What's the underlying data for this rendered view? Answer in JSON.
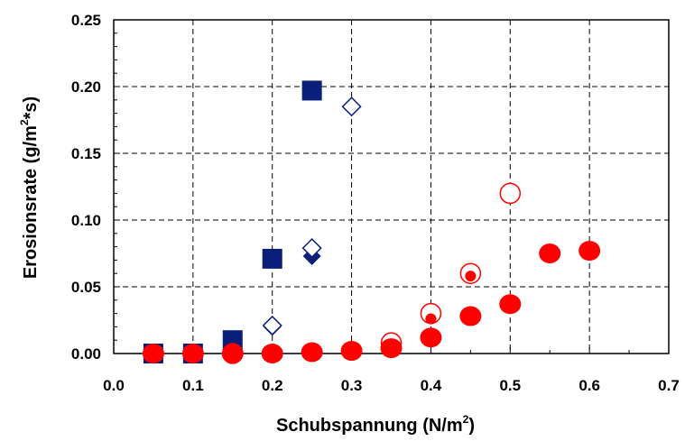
{
  "chart_data": {
    "type": "scatter",
    "title": "",
    "xlabel": {
      "base": "Schubspannung (N/m",
      "sup": "2",
      "tail": ")"
    },
    "ylabel": {
      "base": "Erosionsrate (g/m",
      "sup": "2",
      "tail": "*s)"
    },
    "xlim": [
      0.0,
      0.7
    ],
    "ylim": [
      0.0,
      0.25
    ],
    "x_ticks": [
      "0.0",
      "0.1",
      "0.2",
      "0.3",
      "0.4",
      "0.5",
      "0.6",
      "0.7"
    ],
    "y_ticks": [
      "0.00",
      "0.05",
      "0.10",
      "0.15",
      "0.20",
      "0.25"
    ],
    "grid": true,
    "legend": "none",
    "series": [
      {
        "marker": "filled-square",
        "color": "#0a1f7a",
        "points": [
          [
            0.05,
            0.0
          ],
          [
            0.1,
            0.0
          ],
          [
            0.15,
            0.01
          ],
          [
            0.2,
            0.071
          ],
          [
            0.25,
            0.197
          ]
        ]
      },
      {
        "marker": "filled-diamond",
        "color": "#0a1f7a",
        "points": [
          [
            0.05,
            0.0
          ],
          [
            0.1,
            0.0
          ],
          [
            0.15,
            0.0
          ],
          [
            0.2,
            0.02
          ],
          [
            0.25,
            0.073
          ]
        ]
      },
      {
        "marker": "open-diamond",
        "color": "#0a1f7a",
        "points": [
          [
            0.2,
            0.021
          ],
          [
            0.25,
            0.079
          ],
          [
            0.3,
            0.185
          ]
        ]
      },
      {
        "marker": "open-circle",
        "color": "#ff0000",
        "points": [
          [
            0.15,
            0.0
          ],
          [
            0.35,
            0.008
          ],
          [
            0.4,
            0.03
          ],
          [
            0.45,
            0.06
          ],
          [
            0.5,
            0.12
          ]
        ]
      },
      {
        "marker": "filled-circle",
        "color": "#ff0000",
        "points": [
          [
            0.05,
            0.0
          ],
          [
            0.1,
            0.0
          ],
          [
            0.15,
            0.0
          ],
          [
            0.2,
            0.0
          ],
          [
            0.25,
            0.001
          ],
          [
            0.3,
            0.002
          ],
          [
            0.35,
            0.004
          ],
          [
            0.4,
            0.012
          ],
          [
            0.45,
            0.028
          ],
          [
            0.5,
            0.037
          ],
          [
            0.55,
            0.075
          ],
          [
            0.6,
            0.077
          ]
        ]
      },
      {
        "marker": "small-filled-circle",
        "color": "#ff0000",
        "points": [
          [
            0.4,
            0.026
          ],
          [
            0.45,
            0.058
          ]
        ]
      }
    ]
  }
}
